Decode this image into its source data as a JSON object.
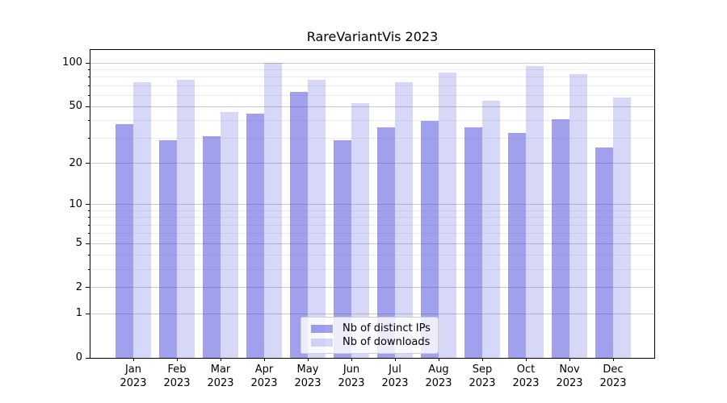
{
  "title": "RareVariantVis 2023",
  "chart_data": {
    "type": "bar",
    "title": "RareVariantVis 2023",
    "xlabel": "",
    "ylabel": "",
    "yscale": "log1p",
    "ylim": [
      0,
      123
    ],
    "grid": true,
    "legend_position": "lower center",
    "y_major_ticks": [
      0,
      1,
      2,
      5,
      10,
      20,
      50,
      100
    ],
    "y_minor_gridlines": [
      3,
      4,
      6,
      7,
      8,
      9,
      30,
      40,
      60,
      70,
      80,
      90
    ],
    "x_tick_labels": [
      [
        "Jan",
        "2023"
      ],
      [
        "Feb",
        "2023"
      ],
      [
        "Mar",
        "2023"
      ],
      [
        "Apr",
        "2023"
      ],
      [
        "May",
        "2023"
      ],
      [
        "Jun",
        "2023"
      ],
      [
        "Jul",
        "2023"
      ],
      [
        "Aug",
        "2023"
      ],
      [
        "Sep",
        "2023"
      ],
      [
        "Oct",
        "2023"
      ],
      [
        "Nov",
        "2023"
      ],
      [
        "Dec",
        "2023"
      ]
    ],
    "series": [
      {
        "name": "Nb of distinct IPs",
        "color": "rgba(66,66,219,0.5)",
        "values": [
          38,
          29,
          31,
          45,
          63,
          29,
          36,
          40,
          36,
          33,
          41,
          26
        ]
      },
      {
        "name": "Nb of downloads",
        "color": "rgba(95,95,223,0.25)",
        "values": [
          74,
          77,
          46,
          100,
          77,
          53,
          74,
          86,
          55,
          95,
          84,
          58
        ]
      }
    ]
  },
  "colors": {
    "bar_distinct_ips": "rgba(66,66,219,0.5)",
    "bar_downloads": "rgba(95,95,223,0.25)",
    "grid_major": "#c9c9c9",
    "grid_minor": "#ededed",
    "axis": "#000000",
    "legend_border": "#cccccc"
  }
}
